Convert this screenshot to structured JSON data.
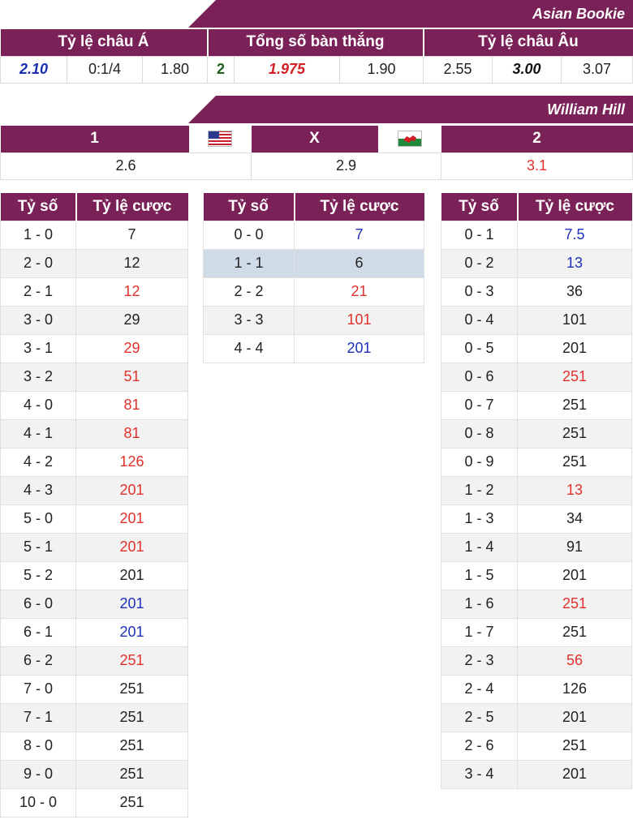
{
  "asian": {
    "bookie": "Asian Bookie",
    "headers": [
      "Tỷ lệ châu Á",
      "Tổng số bàn thắng",
      "Tỷ lệ châu Âu"
    ],
    "asia": {
      "home": "2.10",
      "line": "0:1/4",
      "away": "1.80"
    },
    "total": {
      "line": "2",
      "over": "1.975",
      "under": "1.90"
    },
    "europe": {
      "home": "2.55",
      "draw": "3.00",
      "away": "3.07"
    }
  },
  "williamhill": {
    "bookie": "William Hill",
    "h1": "1",
    "hx": "X",
    "h2": "2",
    "v1": "2.6",
    "vx": "2.9",
    "v2": "3.1"
  },
  "score_headers": {
    "score": "Tỷ số",
    "odds": "Tỷ lệ cược"
  },
  "home_scores": [
    {
      "s": "1 - 0",
      "o": "7",
      "c": "black"
    },
    {
      "s": "2 - 0",
      "o": "12",
      "c": "black"
    },
    {
      "s": "2 - 1",
      "o": "12",
      "c": "red"
    },
    {
      "s": "3 - 0",
      "o": "29",
      "c": "black"
    },
    {
      "s": "3 - 1",
      "o": "29",
      "c": "red"
    },
    {
      "s": "3 - 2",
      "o": "51",
      "c": "red"
    },
    {
      "s": "4 - 0",
      "o": "81",
      "c": "red"
    },
    {
      "s": "4 - 1",
      "o": "81",
      "c": "red"
    },
    {
      "s": "4 - 2",
      "o": "126",
      "c": "red"
    },
    {
      "s": "4 - 3",
      "o": "201",
      "c": "red"
    },
    {
      "s": "5 - 0",
      "o": "201",
      "c": "red"
    },
    {
      "s": "5 - 1",
      "o": "201",
      "c": "red"
    },
    {
      "s": "5 - 2",
      "o": "201",
      "c": "black"
    },
    {
      "s": "6 - 0",
      "o": "201",
      "c": "blue"
    },
    {
      "s": "6 - 1",
      "o": "201",
      "c": "blue"
    },
    {
      "s": "6 - 2",
      "o": "251",
      "c": "red"
    },
    {
      "s": "7 - 0",
      "o": "251",
      "c": "black"
    },
    {
      "s": "7 - 1",
      "o": "251",
      "c": "black"
    },
    {
      "s": "8 - 0",
      "o": "251",
      "c": "black"
    },
    {
      "s": "9 - 0",
      "o": "251",
      "c": "black"
    },
    {
      "s": "10 - 0",
      "o": "251",
      "c": "black"
    }
  ],
  "draw_scores": [
    {
      "s": "0 - 0",
      "o": "7",
      "c": "blue"
    },
    {
      "s": "1 - 1",
      "o": "6",
      "c": "black"
    },
    {
      "s": "2 - 2",
      "o": "21",
      "c": "red"
    },
    {
      "s": "3 - 3",
      "o": "101",
      "c": "red"
    },
    {
      "s": "4 - 4",
      "o": "201",
      "c": "blue"
    }
  ],
  "away_scores": [
    {
      "s": "0 - 1",
      "o": "7.5",
      "c": "blue"
    },
    {
      "s": "0 - 2",
      "o": "13",
      "c": "blue"
    },
    {
      "s": "0 - 3",
      "o": "36",
      "c": "black"
    },
    {
      "s": "0 - 4",
      "o": "101",
      "c": "black"
    },
    {
      "s": "0 - 5",
      "o": "201",
      "c": "black"
    },
    {
      "s": "0 - 6",
      "o": "251",
      "c": "red"
    },
    {
      "s": "0 - 7",
      "o": "251",
      "c": "black"
    },
    {
      "s": "0 - 8",
      "o": "251",
      "c": "black"
    },
    {
      "s": "0 - 9",
      "o": "251",
      "c": "black"
    },
    {
      "s": "1 - 2",
      "o": "13",
      "c": "red"
    },
    {
      "s": "1 - 3",
      "o": "34",
      "c": "black"
    },
    {
      "s": "1 - 4",
      "o": "91",
      "c": "black"
    },
    {
      "s": "1 - 5",
      "o": "201",
      "c": "black"
    },
    {
      "s": "1 - 6",
      "o": "251",
      "c": "red"
    },
    {
      "s": "1 - 7",
      "o": "251",
      "c": "black"
    },
    {
      "s": "2 - 3",
      "o": "56",
      "c": "red"
    },
    {
      "s": "2 - 4",
      "o": "126",
      "c": "black"
    },
    {
      "s": "2 - 5",
      "o": "201",
      "c": "black"
    },
    {
      "s": "2 - 6",
      "o": "251",
      "c": "black"
    },
    {
      "s": "3 - 4",
      "o": "201",
      "c": "black"
    }
  ],
  "flags": {
    "home": "usa-flag",
    "away": "wales-flag"
  },
  "colors": {
    "header": "#7a2158",
    "alt_row": "#f2f2f2",
    "highlight": "#cfdce8",
    "red": "#e0312c",
    "blue": "#1f2fb8"
  }
}
